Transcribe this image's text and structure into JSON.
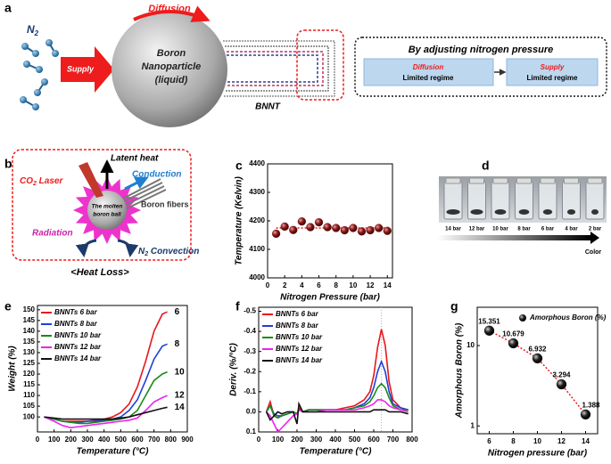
{
  "panel_labels": [
    "a",
    "b",
    "c",
    "d",
    "e",
    "f",
    "g"
  ],
  "diagram_a": {
    "n2_main": "N",
    "n2_sub": "2",
    "supply": "Supply",
    "diffusion": "Diffusion",
    "particle": [
      "Boron",
      "Nanoparticle",
      "(liquid)"
    ],
    "bnnt": "BNNT",
    "box_title": "By adjusting nitrogen pressure",
    "regime1": [
      "Diffusion",
      "Limited regime"
    ],
    "regime2": [
      "Supply",
      "Limited regime"
    ]
  },
  "diagram_b": {
    "latent": "Latent heat",
    "laser_main": "CO",
    "laser_sub": "2",
    "laser_rest": " Laser",
    "conduction": "Conduction",
    "fibers": "Boron fibers",
    "ball": [
      "The molten",
      "boron ball"
    ],
    "radiation": "Radiation",
    "conv_main": "N",
    "conv_sub": "2",
    "conv_rest": " Convection",
    "heat_loss": "<Heat Loss>"
  },
  "diagram_d": {
    "vials": [
      "14 bar",
      "12 bar",
      "10 bar",
      "8 bar",
      "6 bar",
      "4 bar",
      "2 bar"
    ],
    "color": "Color"
  },
  "chart_data": [
    {
      "type": "scatter",
      "x_label": "Nitrogen Pressure (bar)",
      "y_label": "Temperature (Kelvin)",
      "x": [
        1,
        2,
        3,
        4,
        5,
        6,
        7,
        8,
        9,
        10,
        11,
        12,
        13,
        14
      ],
      "values": [
        4155,
        4180,
        4168,
        4198,
        4178,
        4195,
        4178,
        4175,
        4167,
        4175,
        4163,
        4167,
        4175,
        4165
      ],
      "color": "#8b1a1a",
      "fit_value": 4175,
      "fit_color": "#e02020",
      "xlim": [
        0,
        14.6
      ],
      "xticks": [
        0,
        2,
        4,
        6,
        8,
        10,
        12,
        14
      ],
      "ylim": [
        4000,
        4400
      ],
      "yticks": [
        4000,
        4100,
        4200,
        4300,
        4400
      ]
    },
    {
      "type": "line",
      "x_label": "Temperature (°C)",
      "y_label": "Weight (%)",
      "x": [
        40,
        100,
        150,
        200,
        250,
        300,
        350,
        400,
        450,
        500,
        550,
        600,
        650,
        700,
        750,
        780
      ],
      "series": [
        {
          "name": "BNNTs 6 bar",
          "end_label": "6",
          "color": "#e8161b",
          "values": [
            100,
            99,
            98,
            98,
            98,
            98,
            98.5,
            99,
            100,
            102,
            106,
            114,
            126,
            140,
            148,
            149
          ]
        },
        {
          "name": "BNNTs 8 bar",
          "end_label": "8",
          "color": "#1f3fd8",
          "values": [
            100,
            99,
            98,
            97.5,
            97.5,
            98,
            98,
            98.5,
            99,
            100,
            103,
            108,
            117,
            127,
            133,
            134
          ]
        },
        {
          "name": "BNNTs 10 bar",
          "end_label": "10",
          "color": "#1a8a1a",
          "values": [
            100,
            99,
            98,
            97.5,
            97,
            97,
            97.5,
            98,
            98.5,
            99,
            100,
            103,
            110,
            117,
            120,
            121
          ]
        },
        {
          "name": "BNNTs 12 bar",
          "end_label": "12",
          "color": "#ee22ee",
          "values": [
            100,
            98,
            96,
            95,
            95.5,
            96,
            96.5,
            97,
            97.5,
            98,
            98.5,
            99.5,
            103,
            107,
            109,
            110
          ]
        },
        {
          "name": "BNNTs 14 bar",
          "end_label": "14",
          "color": "#111111",
          "values": [
            100,
            99.5,
            99,
            99,
            99,
            99,
            99,
            99,
            99,
            99.5,
            100,
            101,
            102,
            103,
            104,
            104.5
          ]
        }
      ],
      "xlim": [
        0,
        900
      ],
      "xticks": [
        0,
        100,
        200,
        300,
        400,
        500,
        600,
        700,
        800,
        900
      ],
      "ylim": [
        93,
        152
      ],
      "yticks": [
        100,
        105,
        110,
        115,
        120,
        125,
        130,
        135,
        140,
        145,
        150
      ]
    },
    {
      "type": "line",
      "x_label": "Temperature (°C)",
      "y_label": "Deriv. (%/°C)",
      "x": [
        40,
        60,
        80,
        100,
        120,
        150,
        180,
        200,
        210,
        230,
        260,
        300,
        350,
        400,
        450,
        500,
        550,
        580,
        600,
        620,
        640,
        660,
        680,
        700,
        740,
        780
      ],
      "series": [
        {
          "name": "BNNTs 6 bar",
          "color": "#e8161b",
          "values": [
            0,
            -0.05,
            0.02,
            0.03,
            0.02,
            0.01,
            0,
            0.01,
            -0.02,
            0,
            -0.01,
            -0.01,
            -0.01,
            -0.01,
            -0.02,
            -0.03,
            -0.06,
            -0.1,
            -0.18,
            -0.32,
            -0.41,
            -0.33,
            -0.15,
            -0.06,
            -0.02,
            -0.01
          ]
        },
        {
          "name": "BNNTs 8 bar",
          "color": "#1f3fd8",
          "values": [
            0,
            -0.03,
            0.01,
            0.02,
            0.02,
            0.01,
            0,
            0.01,
            -0.01,
            0,
            -0.01,
            -0.01,
            -0.01,
            -0.01,
            -0.01,
            -0.02,
            -0.04,
            -0.07,
            -0.12,
            -0.2,
            -0.25,
            -0.2,
            -0.1,
            -0.04,
            -0.02,
            -0.01
          ]
        },
        {
          "name": "BNNTs 10 bar",
          "color": "#1a8a1a",
          "values": [
            0,
            -0.03,
            0.02,
            0.03,
            0.02,
            0.01,
            0,
            0.01,
            -0.01,
            0,
            -0.01,
            -0.01,
            -0.01,
            -0.01,
            -0.01,
            -0.02,
            -0.03,
            -0.05,
            -0.08,
            -0.12,
            -0.14,
            -0.12,
            -0.07,
            -0.03,
            -0.01,
            -0.01
          ]
        },
        {
          "name": "BNNTs 12 bar",
          "color": "#ee22ee",
          "values": [
            0,
            0.02,
            0.06,
            0.1,
            0.08,
            0.05,
            0.02,
            0.01,
            -0.01,
            0,
            0,
            0,
            -0.01,
            -0.01,
            -0.01,
            -0.01,
            -0.02,
            -0.03,
            -0.04,
            -0.06,
            -0.06,
            -0.05,
            -0.03,
            -0.02,
            -0.01,
            0
          ]
        },
        {
          "name": "BNNTs 14 bar",
          "color": "#111111",
          "values": [
            0,
            0.04,
            0.02,
            0,
            0.01,
            0,
            0,
            0.06,
            -0.04,
            0,
            0,
            0,
            0,
            0,
            0,
            0,
            0,
            0,
            -0.01,
            -0.01,
            -0.01,
            -0.01,
            0,
            0,
            0,
            0.01
          ]
        }
      ],
      "reference_x": 640,
      "xlim": [
        0,
        800
      ],
      "xticks": [
        0,
        100,
        200,
        300,
        400,
        500,
        600,
        700,
        800
      ],
      "ylim": [
        0.1,
        -0.52
      ],
      "yticks": [
        -0.5,
        -0.4,
        -0.3,
        -0.2,
        -0.1,
        {
          "value": 0,
          "label": "0.0"
        },
        0.1
      ]
    },
    {
      "type": "scatter",
      "log_y": true,
      "x_label": "Nitrogen pressure (bar)",
      "y_label": "Amorphous Boron (%)",
      "x": [
        6,
        8,
        10,
        12,
        14
      ],
      "series": [
        {
          "name": "Amorphous Boron (%)",
          "color": "#111111",
          "values": [
            15.351,
            10.679,
            6.932,
            3.294,
            1.388
          ]
        }
      ],
      "fit_color": "#e02020",
      "legend": "upper right",
      "xlim": [
        5,
        15
      ],
      "xticks": [
        6,
        8,
        10,
        12,
        14
      ],
      "ylim": [
        0.8,
        30
      ],
      "yticks": [
        1,
        10
      ]
    }
  ]
}
